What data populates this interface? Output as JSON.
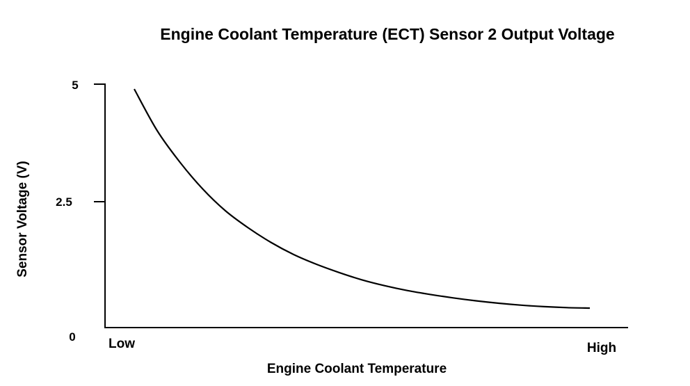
{
  "chart_data": {
    "type": "line",
    "title": "Engine Coolant Temperature (ECT) Sensor 2 Output Voltage",
    "xlabel": "Engine Coolant Temperature",
    "ylabel": "Sensor Voltage (V)",
    "x_categories": [
      "Low",
      "High"
    ],
    "y_ticks": [
      "5",
      "2.5",
      "0"
    ],
    "ylim": [
      0,
      5
    ],
    "grid": false,
    "colors": {
      "line": "#000000",
      "axis": "#000000"
    },
    "series": [
      {
        "x": [
          0,
          0.05,
          0.1,
          0.15,
          0.2,
          0.25,
          0.3,
          0.35,
          0.4,
          0.45,
          0.5,
          0.55,
          0.6,
          0.65,
          0.7,
          0.75,
          0.8,
          0.85,
          0.9,
          0.95,
          1.0
        ],
        "values": [
          4.9,
          4.05,
          3.4,
          2.85,
          2.4,
          2.05,
          1.75,
          1.5,
          1.3,
          1.13,
          0.98,
          0.86,
          0.76,
          0.68,
          0.61,
          0.55,
          0.5,
          0.46,
          0.43,
          0.41,
          0.4
        ]
      }
    ]
  }
}
